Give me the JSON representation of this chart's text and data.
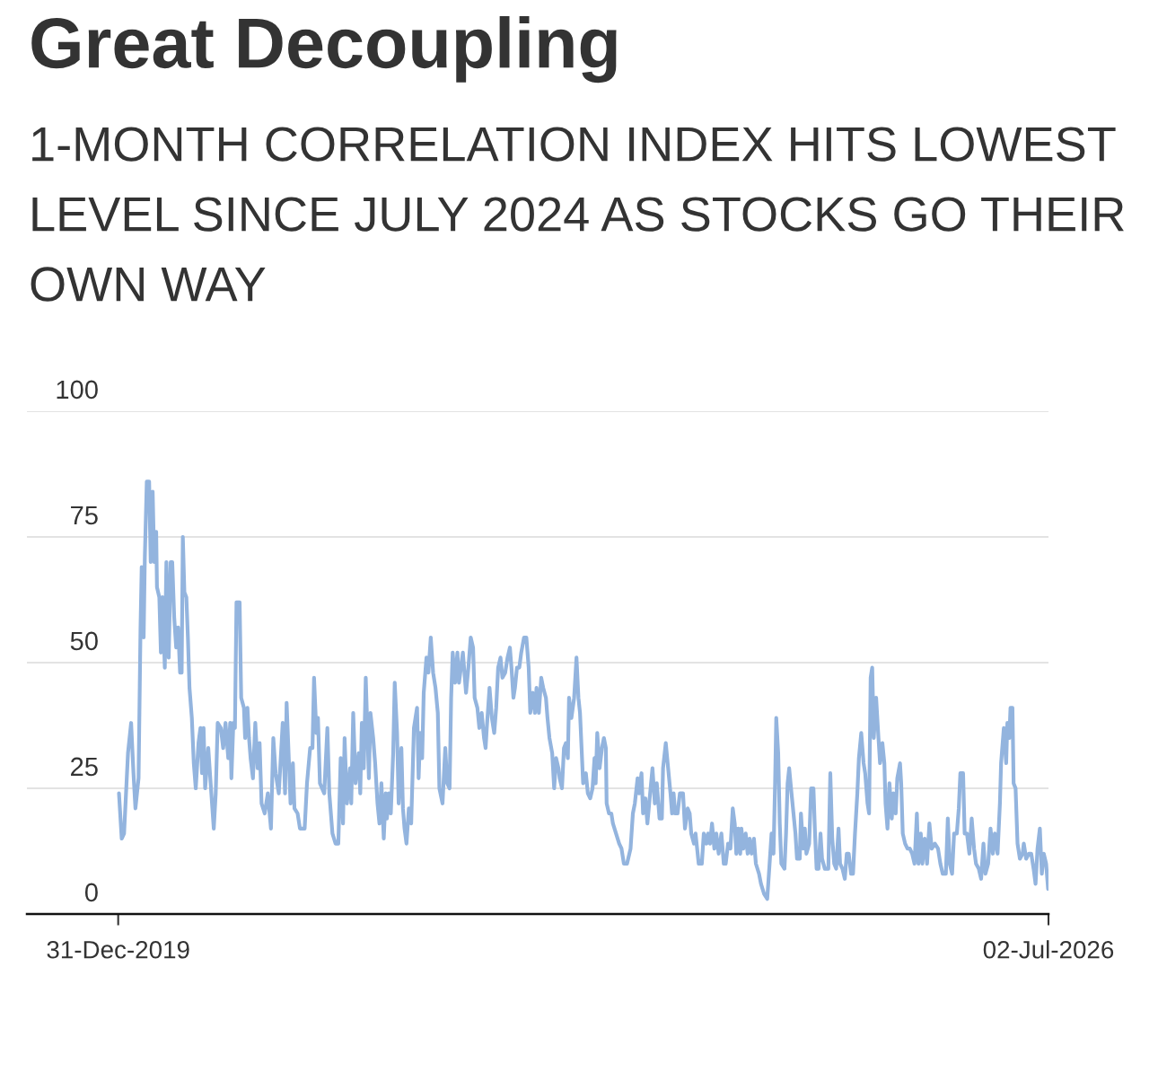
{
  "chart_data": {
    "type": "line",
    "title": "Great Decoupling",
    "subtitle": "1-MONTH CORRELATION INDEX HITS LOWEST LEVEL SINCE JULY 2024 AS STOCKS GO THEIR OWN WAY",
    "x": [
      "2020-01-02",
      "2020-01-09",
      "2020-01-15",
      "2020-01-25",
      "2020-02-02",
      "2020-02-08",
      "2020-02-13",
      "2020-02-21",
      "2020-02-26",
      "2020-02-29",
      "2020-03-05",
      "2020-03-08",
      "2020-03-13",
      "2020-03-19",
      "2020-03-23",
      "2020-03-28",
      "2020-04-01",
      "2020-04-06",
      "2020-04-08",
      "2020-04-14",
      "2020-04-18",
      "2020-04-22",
      "2020-04-28",
      "2020-05-02",
      "2020-05-08",
      "2020-05-13",
      "2020-05-17",
      "2020-05-22",
      "2020-05-27",
      "2020-06-01",
      "2020-06-06",
      "2020-06-10",
      "2020-06-13",
      "2020-06-17",
      "2020-06-22",
      "2020-06-26",
      "2020-06-30",
      "2020-07-06",
      "2020-07-11",
      "2020-07-16",
      "2020-07-23",
      "2020-07-28",
      "2020-08-01",
      "2020-08-05",
      "2020-08-09",
      "2020-08-17",
      "2020-08-23",
      "2020-08-31",
      "2020-09-05",
      "2020-09-10",
      "2020-09-18",
      "2020-09-24",
      "2020-09-30",
      "2020-10-07",
      "2020-10-12",
      "2020-10-15",
      "2020-10-20",
      "2020-10-24",
      "2020-10-28",
      "2020-11-05",
      "2020-11-09",
      "2020-11-16",
      "2020-11-19",
      "2020-11-25",
      "2020-11-29",
      "2020-12-03",
      "2020-12-09",
      "2020-12-15",
      "2020-12-21",
      "2020-12-26",
      "2020-12-31",
      "2021-01-08",
      "2021-01-16",
      "2021-01-24",
      "2021-01-30",
      "2021-02-05",
      "2021-02-13",
      "2021-02-23",
      "2021-03-01",
      "2021-03-05",
      "2021-03-11",
      "2021-03-15",
      "2021-03-21",
      "2021-03-25",
      "2021-04-02",
      "2021-04-08",
      "2021-04-20",
      "2021-04-26",
      "2021-05-04",
      "2021-05-10",
      "2021-05-14",
      "2021-05-20",
      "2021-05-24",
      "2021-05-29",
      "2021-06-09",
      "2021-06-17",
      "2021-06-22",
      "2021-06-30",
      "2021-07-08",
      "2021-07-15",
      "2021-07-21",
      "2021-07-27",
      "2021-07-31",
      "2021-08-06",
      "2021-08-14",
      "2021-08-17",
      "2021-08-22",
      "2021-08-28",
      "2021-09-05",
      "2021-09-09",
      "2021-09-13",
      "2021-09-18",
      "2021-09-23",
      "2021-10-01",
      "2021-10-05",
      "2021-10-12",
      "2021-10-17",
      "2021-10-23",
      "2021-10-28",
      "2021-11-02",
      "2021-11-08",
      "2021-11-13",
      "2021-11-16",
      "2021-11-21",
      "2021-11-26",
      "2021-12-02",
      "2021-12-06",
      "2021-12-12",
      "2021-12-16",
      "2021-12-23",
      "2021-12-27",
      "2021-12-31",
      "2022-01-05",
      "2022-01-11",
      "2022-01-17",
      "2022-01-24",
      "2022-02-01",
      "2022-02-05",
      "2022-02-09",
      "2022-02-14",
      "2022-02-18",
      "2022-02-25",
      "2022-03-02",
      "2022-03-08",
      "2022-03-14",
      "2022-03-20",
      "2022-03-26",
      "2022-03-30",
      "2022-04-07",
      "2022-04-14",
      "2022-04-19",
      "2022-04-25",
      "2022-04-29",
      "2022-05-03",
      "2022-05-09",
      "2022-05-15",
      "2022-05-19",
      "2022-05-29",
      "2022-06-06",
      "2022-06-12",
      "2022-06-18",
      "2022-06-24",
      "2022-06-28",
      "2022-07-05",
      "2022-07-10",
      "2022-07-16",
      "2022-07-22",
      "2022-07-26",
      "2022-07-29",
      "2022-08-05",
      "2022-08-11",
      "2022-08-17",
      "2022-08-22",
      "2022-08-27",
      "2022-09-02",
      "2022-09-07",
      "2022-09-14",
      "2022-09-20",
      "2022-09-26",
      "2022-09-30",
      "2022-10-05",
      "2022-10-09",
      "2022-10-14",
      "2022-10-20",
      "2022-10-25",
      "2022-11-01",
      "2022-11-07",
      "2022-11-13",
      "2022-11-17",
      "2022-11-23",
      "2022-11-29",
      "2022-12-03",
      "2022-12-09",
      "2022-12-15",
      "2022-12-20",
      "2022-12-27",
      "2022-12-31",
      "2023-01-05",
      "2023-01-12",
      "2023-01-17",
      "2023-01-22",
      "2023-01-28",
      "2023-01-31",
      "2023-02-06",
      "2023-02-11",
      "2023-02-16",
      "2023-02-21",
      "2023-02-24",
      "2023-03-02",
      "2023-03-09",
      "2023-03-15",
      "2023-03-20",
      "2023-03-24",
      "2023-03-28",
      "2023-04-01",
      "2023-04-08",
      "2023-04-13",
      "2023-04-19",
      "2023-04-25",
      "2023-04-30",
      "2023-05-03",
      "2023-05-07",
      "2023-05-13",
      "2023-05-19",
      "2023-05-24",
      "2023-05-29",
      "2023-05-31",
      "2023-06-06",
      "2023-06-12",
      "2023-06-16",
      "2023-06-24",
      "2023-07-02",
      "2023-07-08",
      "2023-07-14",
      "2023-07-22",
      "2023-07-31",
      "2023-08-06",
      "2023-08-11",
      "2023-08-18",
      "2023-08-22",
      "2023-08-28",
      "2023-09-01",
      "2023-09-07",
      "2023-09-12",
      "2023-09-19",
      "2023-09-25",
      "2023-10-01",
      "2023-10-06",
      "2023-10-13",
      "2023-10-19",
      "2023-10-22",
      "2023-10-29",
      "2023-11-04",
      "2023-11-10",
      "2023-11-14",
      "2023-11-18",
      "2023-11-22",
      "2023-11-28",
      "2023-12-04",
      "2023-12-12",
      "2023-12-17",
      "2023-12-24",
      "2023-12-29",
      "2024-01-02",
      "2024-01-09",
      "2024-01-13",
      "2024-01-21",
      "2024-01-29",
      "2024-02-03",
      "2024-02-10",
      "2024-02-14",
      "2024-02-19",
      "2024-02-24",
      "2024-03-01",
      "2024-03-06",
      "2024-03-12",
      "2024-03-19",
      "2024-03-25",
      "2024-03-30",
      "2024-04-05",
      "2024-04-11",
      "2024-04-17",
      "2024-04-22",
      "2024-04-26",
      "2024-05-01",
      "2024-05-06",
      "2024-05-09",
      "2024-05-14",
      "2024-05-20",
      "2024-05-25",
      "2024-05-30",
      "2024-06-04",
      "2024-06-10",
      "2024-06-15",
      "2024-06-23",
      "2024-06-28",
      "2024-07-06",
      "2024-07-14",
      "2024-07-20",
      "2024-07-25",
      "2024-07-30",
      "2024-08-03",
      "2024-08-06",
      "2024-08-11",
      "2024-08-15",
      "2024-08-19",
      "2024-08-27",
      "2024-08-31",
      "2024-09-04",
      "2024-09-08",
      "2024-09-14",
      "2024-09-19",
      "2024-09-24",
      "2024-09-28",
      "2024-10-05",
      "2024-10-08",
      "2024-10-14",
      "2024-10-18",
      "2024-10-22",
      "2024-10-29",
      "2024-11-03",
      "2024-11-09",
      "2024-11-13",
      "2024-11-17",
      "2024-11-22",
      "2024-11-27",
      "2024-12-01",
      "2024-12-08",
      "2024-12-17",
      "2024-12-22",
      "2024-12-27",
      "2025-01-01",
      "2025-01-06",
      "2025-01-12",
      "2025-01-16",
      "2025-01-22",
      "2025-01-28",
      "2025-02-02",
      "2025-02-07",
      "2025-02-13",
      "2025-02-18",
      "2025-02-23",
      "2025-03-01",
      "2025-03-05",
      "2025-03-11",
      "2025-03-17",
      "2025-03-21",
      "2025-03-27",
      "2025-03-31",
      "2025-04-04",
      "2025-04-08",
      "2025-04-12",
      "2025-04-18",
      "2025-04-24",
      "2025-04-28",
      "2025-05-04",
      "2025-05-09",
      "2025-05-12",
      "2025-05-17",
      "2025-05-22",
      "2025-05-28",
      "2025-06-01",
      "2025-06-07",
      "2025-06-11",
      "2025-06-18",
      "2025-06-21",
      "2025-06-25",
      "2025-07-01",
      "2025-07-07",
      "2025-07-13",
      "2025-07-19",
      "2025-07-25",
      "2025-07-31",
      "2025-08-04",
      "2025-08-10",
      "2025-08-14",
      "2025-08-20",
      "2025-08-26",
      "2025-09-01",
      "2025-09-07",
      "2025-09-15",
      "2025-09-23",
      "2025-09-29",
      "2025-10-05",
      "2025-10-13",
      "2025-10-18",
      "2025-10-23",
      "2025-10-29",
      "2025-11-03",
      "2025-11-10",
      "2025-11-15",
      "2025-11-19",
      "2025-11-26",
      "2025-11-30",
      "2025-12-06",
      "2025-12-12",
      "2025-12-18",
      "2025-12-24",
      "2025-12-29",
      "2026-01-05",
      "2026-01-11",
      "2026-01-17",
      "2026-01-22",
      "2026-01-29",
      "2026-02-04",
      "2026-02-10",
      "2026-02-15",
      "2026-02-22",
      "2026-02-28",
      "2026-03-03",
      "2026-03-10",
      "2026-03-16",
      "2026-03-19",
      "2026-03-24",
      "2026-03-27",
      "2026-04-01",
      "2026-04-04",
      "2026-04-09",
      "2026-04-14",
      "2026-04-20",
      "2026-04-27",
      "2026-04-30",
      "2026-05-06",
      "2026-05-13",
      "2026-05-19",
      "2026-05-25",
      "2026-05-30",
      "2026-06-04",
      "2026-06-10",
      "2026-06-15",
      "2026-06-20",
      "2026-06-26",
      "2026-07-01"
    ],
    "series": [
      {
        "color": "#93b4de",
        "values": [
          24,
          15,
          16,
          32,
          38,
          28,
          21,
          27,
          57,
          69,
          55,
          71,
          86,
          86,
          70,
          84,
          70,
          76,
          65,
          63,
          52,
          63,
          49,
          70,
          51,
          70,
          70,
          59,
          53,
          57,
          48,
          48,
          75,
          64,
          63,
          55,
          45,
          39,
          30,
          25,
          34,
          37,
          28,
          37,
          25,
          33,
          26,
          17,
          24,
          38,
          37,
          33,
          38,
          31,
          38,
          27,
          38,
          37,
          62,
          62,
          43,
          41,
          35,
          41,
          35,
          31,
          27,
          38,
          29,
          34,
          22,
          20,
          24,
          17,
          35,
          28,
          24,
          38,
          24,
          42,
          30,
          22,
          30,
          21,
          20,
          17,
          17,
          26,
          33,
          33,
          47,
          36,
          39,
          26,
          24,
          37,
          24,
          16,
          14,
          14,
          31,
          18,
          35,
          22,
          29,
          22,
          40,
          26,
          32,
          24,
          38,
          29,
          47,
          27,
          40,
          35,
          30,
          22,
          18,
          26,
          15,
          24,
          19,
          24,
          20,
          32,
          46,
          36,
          22,
          33,
          21,
          17,
          14,
          21,
          18,
          37,
          41,
          27,
          36,
          31,
          44,
          51,
          48,
          55,
          48,
          45,
          40,
          25,
          22,
          33,
          26,
          25,
          43,
          52,
          46,
          52,
          46,
          52,
          44,
          49,
          55,
          53,
          43,
          41,
          37,
          40,
          35,
          33,
          37,
          45,
          39,
          36,
          41,
          49,
          51,
          47,
          48,
          51,
          53,
          49,
          43,
          45,
          49,
          49,
          52,
          55,
          55,
          49,
          40,
          44,
          40,
          45,
          40,
          47,
          45,
          43,
          39,
          35,
          32,
          25,
          31,
          29,
          27,
          25,
          33,
          34,
          31,
          43,
          39,
          43,
          51,
          43,
          40,
          33,
          26,
          28,
          24,
          23,
          25,
          31,
          26,
          36,
          29,
          33,
          35,
          33,
          22,
          20,
          20,
          18,
          16,
          14,
          13,
          10,
          10,
          13,
          20,
          22,
          27,
          24,
          28,
          20,
          23,
          18,
          24,
          29,
          22,
          26,
          19,
          19,
          29,
          34,
          29,
          24,
          20,
          24,
          20,
          20,
          24,
          24,
          17,
          21,
          20,
          16,
          14,
          16,
          10,
          10,
          16,
          14,
          16,
          14,
          18,
          13,
          16,
          12,
          16,
          10,
          10,
          14,
          13,
          21,
          18,
          12,
          17,
          12,
          17,
          13,
          16,
          12,
          15,
          12,
          15,
          10,
          8,
          6,
          4,
          3,
          10,
          16,
          12,
          26,
          39,
          32,
          18,
          10,
          9,
          16,
          26,
          29,
          24,
          20,
          16,
          11,
          11,
          20,
          13,
          17,
          12,
          14,
          25,
          25,
          16,
          9,
          9,
          16,
          11,
          9,
          9,
          28,
          15,
          10,
          9,
          17,
          10,
          9,
          7,
          12,
          12,
          8,
          8,
          16,
          24,
          31,
          36,
          30,
          28,
          22,
          20,
          47,
          49,
          35,
          43,
          35,
          30,
          34,
          30,
          22,
          17,
          26,
          19,
          24,
          20,
          27,
          30,
          26,
          16,
          14,
          13,
          13,
          12,
          10,
          20,
          10,
          16,
          10,
          15,
          10,
          18,
          13,
          14,
          13,
          10,
          8,
          8,
          19,
          10,
          8,
          16,
          16,
          21,
          28,
          28,
          16,
          16,
          12,
          19,
          13,
          10,
          9,
          7,
          14,
          8,
          10,
          17,
          12,
          16,
          12,
          22,
          30,
          37,
          30,
          38,
          35,
          41,
          41,
          26,
          25,
          14,
          11,
          12,
          14,
          11,
          12,
          12,
          9,
          6,
          13,
          17,
          8,
          12,
          10,
          5
        ]
      }
    ],
    "xlim": [
      "2019-05-12",
      "2026-07-02"
    ],
    "xticks": [
      {
        "value": "2019-12-31",
        "label": "31-Dec-2019"
      },
      {
        "value": "2026-07-02",
        "label": "02-Jul-2026"
      }
    ],
    "ylim": [
      0,
      100
    ],
    "yticks": [
      0,
      25,
      50,
      75,
      100
    ],
    "grid": "y",
    "line_style": "solid"
  }
}
